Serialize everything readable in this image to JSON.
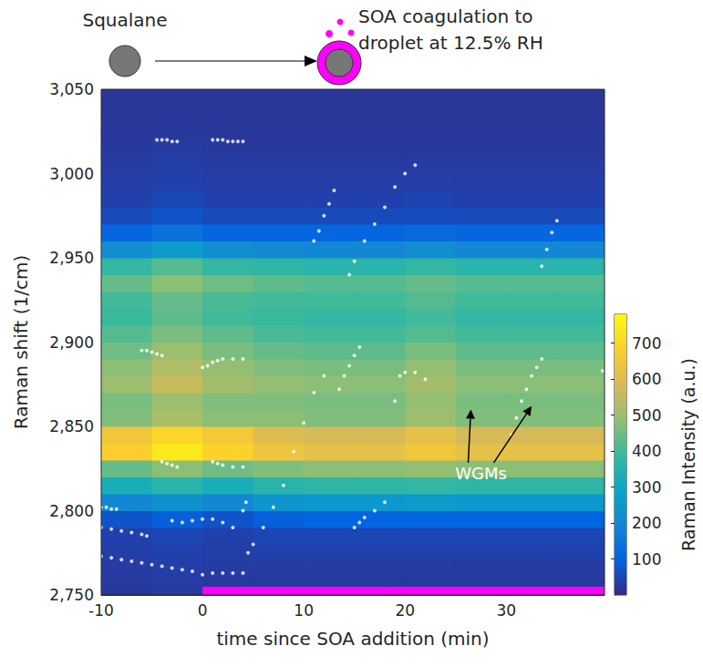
{
  "chart_data": {
    "type": "heatmap",
    "schematic": {
      "left_label": "Squalane",
      "right_label": [
        "SOA coagulation to",
        "droplet at 12.5% RH"
      ]
    },
    "xlabel": "time since SOA addition (min)",
    "ylabel": "Raman shift (1/cm)",
    "xlim": [
      -10,
      39.7
    ],
    "xticks": [
      -10,
      0,
      10,
      20,
      30
    ],
    "ylim": [
      2750,
      3050
    ],
    "yticks": [
      2750,
      2800,
      2850,
      2900,
      2950,
      3000,
      3050
    ],
    "heatmap": {
      "x_edges": [
        -10,
        -5,
        0,
        5,
        10,
        15,
        20,
        25,
        30,
        35,
        40
      ],
      "y_edges": [
        2750,
        2760,
        2770,
        2780,
        2790,
        2800,
        2810,
        2820,
        2830,
        2840,
        2850,
        2860,
        2870,
        2880,
        2890,
        2900,
        2910,
        2920,
        2930,
        2940,
        2950,
        2960,
        2970,
        2980,
        2990,
        3000,
        3010,
        3020,
        3030,
        3040,
        3050
      ],
      "z": [
        [
          25,
          30,
          25,
          25,
          25,
          25,
          25,
          25,
          25,
          25
        ],
        [
          30,
          35,
          30,
          30,
          30,
          30,
          30,
          30,
          30,
          30
        ],
        [
          35,
          40,
          35,
          40,
          40,
          40,
          40,
          40,
          40,
          40
        ],
        [
          40,
          50,
          40,
          50,
          50,
          50,
          50,
          50,
          50,
          50
        ],
        [
          70,
          90,
          70,
          90,
          100,
          100,
          100,
          100,
          100,
          100
        ],
        [
          200,
          230,
          200,
          240,
          250,
          250,
          260,
          250,
          250,
          250
        ],
        [
          330,
          360,
          330,
          360,
          370,
          370,
          380,
          370,
          370,
          370
        ],
        [
          440,
          480,
          450,
          470,
          480,
          480,
          490,
          480,
          480,
          480
        ],
        [
          680,
          740,
          690,
          640,
          620,
          620,
          650,
          620,
          620,
          620
        ],
        [
          650,
          700,
          660,
          600,
          580,
          580,
          620,
          580,
          580,
          580
        ],
        [
          470,
          520,
          480,
          480,
          470,
          470,
          500,
          470,
          470,
          470
        ],
        [
          460,
          500,
          470,
          470,
          460,
          460,
          490,
          460,
          460,
          460
        ],
        [
          500,
          560,
          510,
          490,
          480,
          480,
          510,
          480,
          480,
          480
        ],
        [
          480,
          530,
          490,
          470,
          460,
          460,
          490,
          460,
          460,
          460
        ],
        [
          450,
          500,
          460,
          440,
          430,
          430,
          460,
          430,
          430,
          430
        ],
        [
          420,
          460,
          430,
          410,
          400,
          400,
          420,
          400,
          400,
          400
        ],
        [
          390,
          430,
          400,
          390,
          380,
          380,
          400,
          380,
          380,
          380
        ],
        [
          400,
          440,
          410,
          400,
          400,
          400,
          420,
          400,
          400,
          400
        ],
        [
          440,
          480,
          450,
          430,
          420,
          420,
          440,
          420,
          420,
          420
        ],
        [
          380,
          420,
          380,
          370,
          360,
          360,
          380,
          360,
          360,
          360
        ],
        [
          220,
          260,
          220,
          210,
          200,
          200,
          220,
          200,
          200,
          200
        ],
        [
          110,
          140,
          110,
          110,
          110,
          110,
          120,
          110,
          110,
          110
        ],
        [
          55,
          70,
          55,
          55,
          55,
          55,
          60,
          55,
          55,
          55
        ],
        [
          40,
          50,
          40,
          40,
          40,
          40,
          45,
          40,
          40,
          40
        ],
        [
          35,
          40,
          35,
          35,
          35,
          35,
          35,
          35,
          35,
          35
        ],
        [
          30,
          35,
          30,
          30,
          30,
          30,
          30,
          30,
          30,
          30
        ],
        [
          25,
          30,
          25,
          25,
          25,
          25,
          25,
          25,
          25,
          25
        ],
        [
          22,
          25,
          22,
          22,
          22,
          22,
          22,
          22,
          22,
          22
        ],
        [
          20,
          22,
          20,
          20,
          20,
          20,
          20,
          20,
          20,
          20
        ],
        [
          20,
          20,
          20,
          20,
          20,
          20,
          20,
          20,
          20,
          20
        ]
      ]
    },
    "colorbar": {
      "label": "Raman Intensity (a.u.)",
      "range": [
        0,
        780
      ],
      "ticks": [
        100,
        200,
        300,
        400,
        500,
        600,
        700
      ]
    },
    "scatter": {
      "color": "#ffffff",
      "marker": "circle",
      "x": [
        -4.5,
        -4,
        -3.5,
        -3,
        -2.5,
        1,
        1.5,
        2,
        2.5,
        3,
        3.5,
        4,
        -6,
        -5.5,
        -5,
        -4.5,
        -4,
        0,
        0.5,
        1,
        1.5,
        2,
        3,
        4,
        -4,
        -3.5,
        -3,
        -2.5,
        1,
        1.5,
        2,
        3,
        4,
        -10,
        -9.5,
        -9,
        -8.5,
        -3,
        -2,
        -1,
        0,
        1,
        2,
        3,
        -10,
        -9,
        -8,
        -7,
        -6,
        -5.5,
        -10,
        -9,
        -8,
        -7,
        -6,
        -5,
        -4,
        -3,
        -2,
        -1,
        0,
        1,
        2,
        3,
        4,
        4.5,
        5,
        6,
        7,
        8,
        9,
        10,
        11,
        12,
        4,
        4.3,
        13.5,
        14,
        14.5,
        15,
        15.5,
        14.5,
        15,
        16,
        17,
        18,
        19,
        20,
        21,
        11,
        11.5,
        12,
        12.5,
        13,
        15,
        15.5,
        16,
        17,
        18,
        19,
        19.5,
        20,
        21,
        22,
        30.5,
        31,
        31.5,
        32,
        32.5,
        33,
        33.5,
        33.5,
        34,
        34.5,
        35,
        39.5
      ],
      "y": [
        3020,
        3020,
        3020,
        3019,
        3019,
        3020,
        3020,
        3020,
        3019,
        3019,
        3019,
        3019,
        2895,
        2895,
        2894,
        2893,
        2892,
        2885,
        2886,
        2888,
        2889,
        2890,
        2890,
        2890,
        2829,
        2828,
        2827,
        2826,
        2829,
        2828,
        2827,
        2826,
        2826,
        2802,
        2802,
        2801,
        2801,
        2794,
        2793,
        2794,
        2795,
        2795,
        2793,
        2790,
        2790,
        2789,
        2788,
        2787,
        2786,
        2785,
        2773,
        2772,
        2771,
        2770,
        2769,
        2768,
        2767,
        2766,
        2765,
        2764,
        2762,
        2763,
        2763,
        2763,
        2763,
        2775,
        2780,
        2790,
        2802,
        2815,
        2835,
        2852,
        2870,
        2880,
        2800,
        2805,
        2872,
        2880,
        2886,
        2892,
        2897,
        2940,
        2948,
        2960,
        2970,
        2980,
        2992,
        3000,
        3005,
        2960,
        2966,
        2975,
        2982,
        2990,
        2790,
        2793,
        2796,
        2800,
        2805,
        2865,
        2880,
        2882,
        2882,
        2878,
        2845,
        2855,
        2865,
        2872,
        2880,
        2885,
        2890,
        2945,
        2955,
        2965,
        2972,
        2883
      ]
    },
    "highlight": {
      "x": [
        0,
        40
      ],
      "color": "#ff00ff"
    },
    "annotation": {
      "text": "WGMs",
      "x": 27.5,
      "y": 2822,
      "arrows_to": [
        [
          26.5,
          2860
        ],
        [
          32.5,
          2862
        ]
      ]
    }
  }
}
